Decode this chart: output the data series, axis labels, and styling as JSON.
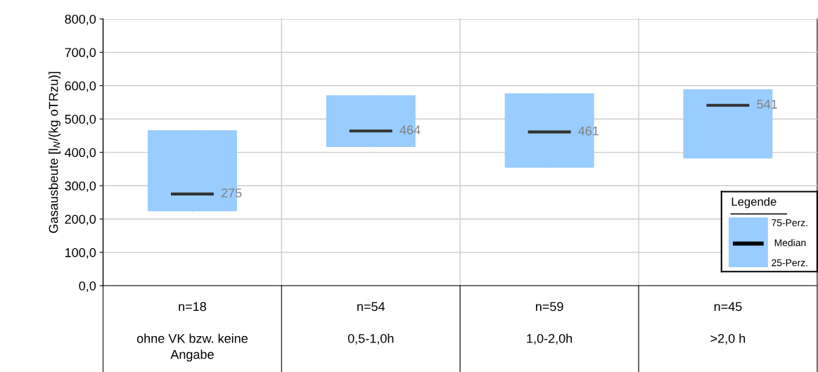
{
  "chart_data": {
    "type": "box",
    "categories": [
      "n=18\n\nohne VK bzw. keine\nAngabe",
      "n=54\n\n0,5-1,0h",
      "n=59\n\n1,0-2,0h",
      "n=45\n\n>2,0 h"
    ],
    "series": [
      {
        "name": "Median",
        "color": "#99ccff",
        "boxes": [
          {
            "low": 223,
            "q1": 223,
            "median": 275,
            "q3": 466,
            "high": 466
          },
          {
            "low": 416,
            "q1": 416,
            "median": 464,
            "q3": 571,
            "high": 571
          },
          {
            "low": 354,
            "q1": 354,
            "median": 461,
            "q3": 577,
            "high": 577
          },
          {
            "low": 382,
            "q1": 382,
            "median": 541,
            "q3": 589,
            "high": 589
          }
        ],
        "value_labels": [
          "275",
          "464",
          "461",
          "541"
        ]
      }
    ],
    "ylabel": "Gasausbeute [l$_{N}$/(kg oTRzu)]",
    "ylim": [
      0,
      800
    ],
    "yticks": [
      {
        "value": 0,
        "label": "0,0"
      },
      {
        "value": 100,
        "label": "100,0"
      },
      {
        "value": 200,
        "label": "200,0"
      },
      {
        "value": 300,
        "label": "300,0"
      },
      {
        "value": 400,
        "label": "400,0"
      },
      {
        "value": 500,
        "label": "500,0"
      },
      {
        "value": 600,
        "label": "600,0"
      },
      {
        "value": 700,
        "label": "700,0"
      },
      {
        "value": 800,
        "label": "800,0"
      }
    ],
    "grid": true,
    "legend": "right",
    "legend_title": "Legende",
    "annotations": [
      "75-Perz.",
      "25-Perz."
    ]
  }
}
